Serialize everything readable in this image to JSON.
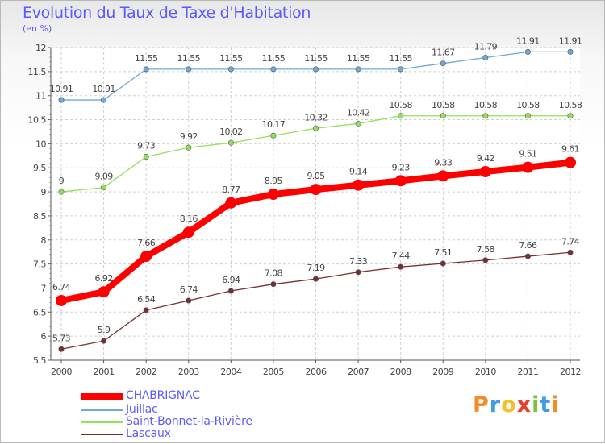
{
  "header": {
    "title": "Evolution du Taux de Taxe d'Habitation",
    "subtitle": "(en %)"
  },
  "chart_data": {
    "type": "line",
    "title": "Evolution du Taux de Taxe d'Habitation",
    "ylabel": "(en %)",
    "xlabel": "",
    "x": [
      "2000",
      "2001",
      "2002",
      "2003",
      "2004",
      "2005",
      "2006",
      "2007",
      "2008",
      "2009",
      "2010",
      "2011",
      "2012"
    ],
    "ylim": [
      5.5,
      12
    ],
    "yticks": [
      5.5,
      6,
      6.5,
      7,
      7.5,
      8,
      8.5,
      9,
      9.5,
      10,
      10.5,
      11,
      11.5,
      12
    ],
    "ytick_labels": [
      "5.5",
      "6",
      "6.5",
      "7",
      "7.5",
      "8",
      "8.5",
      "9",
      "9.5",
      "10",
      "10.5",
      "11",
      "11.5",
      "12"
    ],
    "grid": true,
    "legend_position": "bottom-left",
    "series": [
      {
        "name": "CHABRIGNAC",
        "color": "#ff0000",
        "emphasis": true,
        "values": [
          6.74,
          6.92,
          7.66,
          8.16,
          8.77,
          8.95,
          9.05,
          9.14,
          9.23,
          9.33,
          9.42,
          9.51,
          9.61
        ],
        "labels": [
          "6.74",
          "6.92",
          "7.66",
          "8.16",
          "8.77",
          "8.95",
          "9.05",
          "9.14",
          "9.23",
          "9.33",
          "9.42",
          "9.51",
          "9.61"
        ]
      },
      {
        "name": "Juillac",
        "color": "#6fa8dc",
        "values": [
          10.91,
          10.91,
          11.55,
          11.55,
          11.55,
          11.55,
          11.55,
          11.55,
          11.55,
          11.67,
          11.79,
          11.91,
          11.91
        ],
        "labels": [
          "10.91",
          "10.91",
          "11.55",
          "11.55",
          "11.55",
          "11.55",
          "11.55",
          "11.55",
          "11.55",
          "11.67",
          "11.79",
          "11.91",
          "11.91"
        ]
      },
      {
        "name": "Saint-Bonnet-la-Rivière",
        "color": "#93e05a",
        "values": [
          9,
          9.09,
          9.73,
          9.92,
          10.02,
          10.17,
          10.32,
          10.42,
          10.58,
          10.58,
          10.58,
          10.58,
          10.58
        ],
        "labels": [
          "9",
          "9.09",
          "9.73",
          "9.92",
          "10.02",
          "10.17",
          "10.32",
          "10.42",
          "10.58",
          "10.58",
          "10.58",
          "10.58",
          "10.58"
        ]
      },
      {
        "name": "Lascaux",
        "color": "#7b2e2e",
        "values": [
          5.73,
          5.9,
          6.54,
          6.74,
          6.94,
          7.08,
          7.19,
          7.33,
          7.44,
          7.51,
          7.58,
          7.66,
          7.74
        ],
        "labels": [
          "5.73",
          "5.9",
          "6.54",
          "6.74",
          "6.94",
          "7.08",
          "7.19",
          "7.33",
          "7.44",
          "7.51",
          "7.58",
          "7.66",
          "7.74"
        ]
      }
    ]
  },
  "legend": {
    "items": [
      {
        "label": "CHABRIGNAC",
        "color": "#ff0000"
      },
      {
        "label": "Juillac",
        "color": "#6fa8dc"
      },
      {
        "label": "Saint-Bonnet-la-Rivière",
        "color": "#93e05a"
      },
      {
        "label": "Lascaux",
        "color": "#7b2e2e"
      }
    ]
  },
  "logo": {
    "text": "Proxiti",
    "letters": [
      {
        "ch": "P",
        "color": "#f28c28"
      },
      {
        "ch": "r",
        "color": "#3d9be9"
      },
      {
        "ch": "o",
        "color": "#f2c028"
      },
      {
        "ch": "x",
        "color": "#e8412b"
      },
      {
        "ch": "i",
        "color": "#7bc043"
      },
      {
        "ch": "t",
        "color": "#3d9be9"
      },
      {
        "ch": "i",
        "color": "#f28c28"
      }
    ]
  }
}
